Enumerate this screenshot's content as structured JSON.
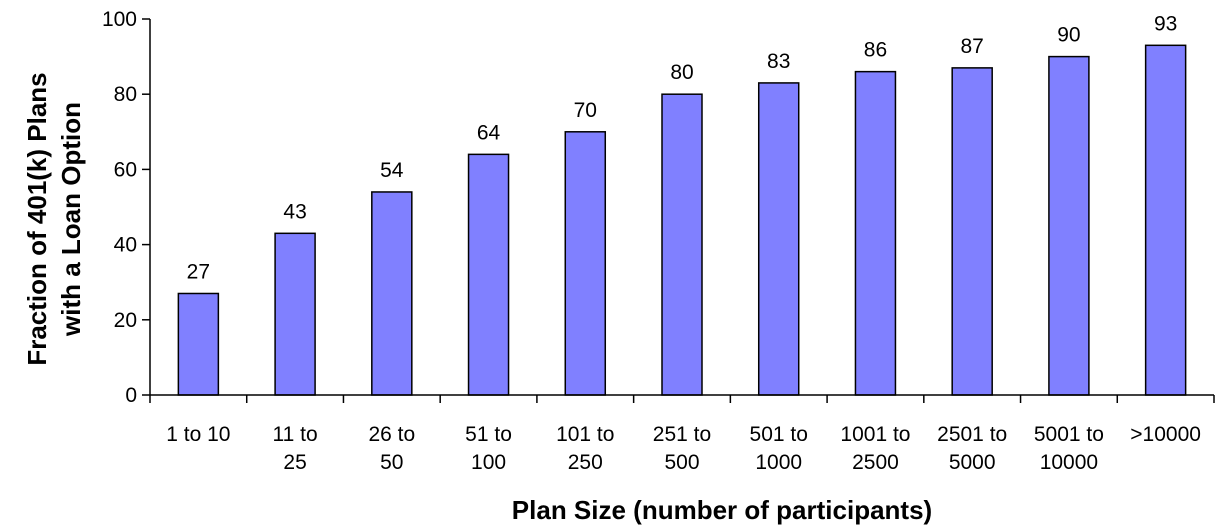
{
  "chart_data": {
    "type": "bar",
    "categories": [
      [
        "1 to 10"
      ],
      [
        "11 to",
        "25"
      ],
      [
        "26 to",
        "50"
      ],
      [
        "51 to",
        "100"
      ],
      [
        "101 to",
        "250"
      ],
      [
        "251 to",
        "500"
      ],
      [
        "501 to",
        "1000"
      ],
      [
        "1001 to",
        "2500"
      ],
      [
        "2501 to",
        "5000"
      ],
      [
        "5001 to",
        "10000"
      ],
      [
        ">10000"
      ]
    ],
    "values": [
      27,
      43,
      54,
      64,
      70,
      80,
      83,
      86,
      87,
      90,
      93
    ],
    "data_labels": [
      "27",
      "43",
      "54",
      "64",
      "70",
      "80",
      "83",
      "86",
      "87",
      "90",
      "93"
    ],
    "xlabel": "Plan Size (number of participants)",
    "ylabel": [
      "Fraction of 401(k) Plans",
      "with a Loan Option"
    ],
    "ylim": [
      0,
      100
    ],
    "yticks": [
      0,
      20,
      40,
      60,
      80,
      100
    ],
    "grid": false,
    "legend": "none",
    "colors": {
      "bar_fill": "#8080ff",
      "bar_stroke": "#000000",
      "axis": "#000000"
    }
  }
}
